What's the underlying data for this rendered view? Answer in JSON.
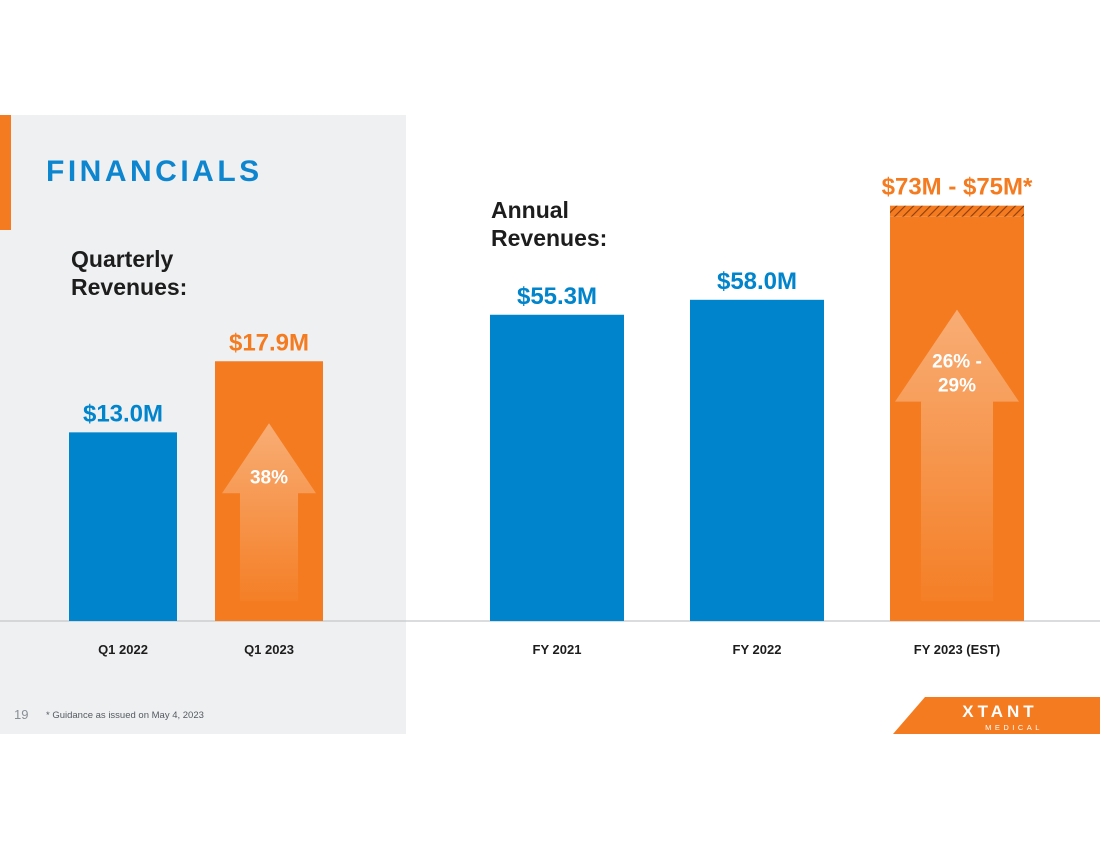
{
  "slide": {
    "title": "FINANCIALS",
    "page_number": "19",
    "footnote": "* Guidance as issued on May 4, 2023",
    "logo": {
      "name": "XTANT",
      "subtitle": "MEDICAL"
    }
  },
  "colors": {
    "blue": "#0084cc",
    "orange": "#f47b20",
    "panel_gray": "#eff0f2",
    "text_dark": "#1d1d1d"
  },
  "chart_data": [
    {
      "type": "bar",
      "title": "Quarterly\nRevenues:",
      "categories": [
        "Q1 2022",
        "Q1 2023"
      ],
      "values": [
        13.0,
        17.9
      ],
      "value_labels": [
        "$13.0M",
        "$17.9M"
      ],
      "bar_colors": [
        "blue",
        "orange"
      ],
      "ylim": [
        0,
        18.4
      ],
      "annotations": [
        {
          "category_index": 1,
          "type": "up-arrow",
          "label": "38%"
        }
      ]
    },
    {
      "type": "bar",
      "title": "Annual\nRevenues:",
      "categories": [
        "FY 2021",
        "FY 2022",
        "FY 2023 (EST)"
      ],
      "values": [
        55.3,
        58.0,
        74.0
      ],
      "value_labels": [
        "$55.3M",
        "$58.0M",
        "$73M - $75M*"
      ],
      "bar_colors": [
        "blue",
        "blue",
        "orange"
      ],
      "estimate_range": {
        "category_index": 2,
        "low": 73,
        "high": 75
      },
      "ylim": [
        0,
        75.3
      ],
      "annotations": [
        {
          "category_index": 2,
          "type": "up-arrow",
          "label": "26% -\n29%"
        }
      ]
    }
  ]
}
